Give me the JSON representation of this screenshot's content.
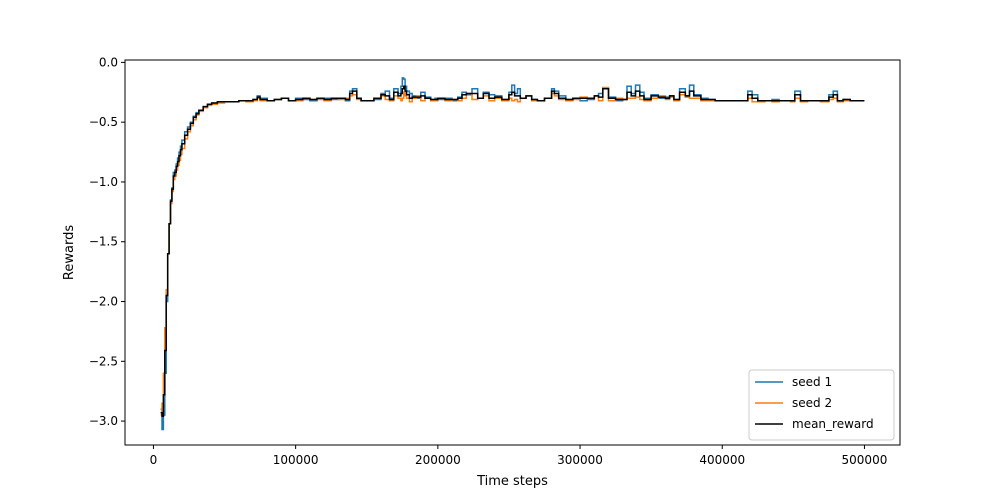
{
  "chart_data": {
    "type": "line",
    "title": "",
    "xlabel": "Time steps",
    "ylabel": "Rewards",
    "xlim": [
      -20000,
      525000
    ],
    "ylim": [
      -3.2,
      0.02
    ],
    "xticks": [
      0,
      100000,
      200000,
      300000,
      400000,
      500000
    ],
    "xtick_labels": [
      "0",
      "100000",
      "200000",
      "300000",
      "400000",
      "500000"
    ],
    "yticks": [
      -3.0,
      -2.5,
      -2.0,
      -1.5,
      -1.0,
      -0.5,
      0.0
    ],
    "ytick_labels": [
      "−3.0",
      "−2.5",
      "−2.0",
      "−1.5",
      "−1.0",
      "−0.5",
      "0.0"
    ],
    "grid": false,
    "legend_position": "bottom-right",
    "series": [
      {
        "name": "seed 1",
        "color": "#1f77b4",
        "x": [
          5000,
          6000,
          7000,
          8000,
          9000,
          10000,
          11000,
          12000,
          13000,
          14000,
          15000,
          16000,
          17000,
          18000,
          19000,
          20000,
          22000,
          24000,
          26000,
          28000,
          30000,
          32000,
          35000,
          38000,
          41000,
          45000,
          50000,
          55000,
          60000,
          65000,
          70000,
          73000,
          75000,
          80000,
          85000,
          90000,
          95000,
          100000,
          105000,
          110000,
          115000,
          120000,
          125000,
          130000,
          135000,
          138000,
          140000,
          143000,
          146000,
          150000,
          155000,
          160000,
          163000,
          166000,
          169000,
          172000,
          174000,
          175000,
          176000,
          177000,
          178000,
          180000,
          182000,
          185000,
          188000,
          191000,
          195000,
          198000,
          200000,
          205000,
          210000,
          214000,
          217000,
          220000,
          224000,
          228000,
          232000,
          236000,
          240000,
          245000,
          250000,
          252000,
          254000,
          256000,
          258000,
          262000,
          266000,
          270000,
          275000,
          280000,
          282000,
          285000,
          290000,
          295000,
          300000,
          305000,
          310000,
          313000,
          316000,
          320000,
          325000,
          330000,
          333000,
          336000,
          339000,
          342000,
          345000,
          350000,
          355000,
          360000,
          363000,
          366000,
          370000,
          374000,
          377000,
          380000,
          385000,
          390000,
          395000,
          400000,
          405000,
          410000,
          415000,
          418000,
          421000,
          425000,
          430000,
          435000,
          440000,
          445000,
          448000,
          451000,
          455000,
          460000,
          465000,
          469000,
          472000,
          475000,
          478000,
          481000,
          485000,
          490000,
          495000,
          500000
        ],
        "values": [
          -2.9,
          -3.07,
          -2.95,
          -2.6,
          -2.0,
          -1.6,
          -1.35,
          -1.15,
          -1.05,
          -0.92,
          -0.9,
          -0.85,
          -0.8,
          -0.75,
          -0.7,
          -0.65,
          -0.58,
          -0.54,
          -0.5,
          -0.45,
          -0.42,
          -0.4,
          -0.37,
          -0.35,
          -0.34,
          -0.33,
          -0.33,
          -0.33,
          -0.32,
          -0.32,
          -0.31,
          -0.28,
          -0.3,
          -0.32,
          -0.31,
          -0.3,
          -0.32,
          -0.3,
          -0.31,
          -0.32,
          -0.3,
          -0.3,
          -0.31,
          -0.3,
          -0.32,
          -0.24,
          -0.22,
          -0.3,
          -0.32,
          -0.32,
          -0.31,
          -0.26,
          -0.24,
          -0.3,
          -0.22,
          -0.26,
          -0.2,
          -0.13,
          -0.14,
          -0.2,
          -0.24,
          -0.26,
          -0.28,
          -0.3,
          -0.25,
          -0.29,
          -0.31,
          -0.3,
          -0.31,
          -0.3,
          -0.32,
          -0.29,
          -0.25,
          -0.27,
          -0.22,
          -0.3,
          -0.25,
          -0.27,
          -0.28,
          -0.31,
          -0.25,
          -0.19,
          -0.26,
          -0.22,
          -0.3,
          -0.28,
          -0.31,
          -0.32,
          -0.3,
          -0.22,
          -0.24,
          -0.28,
          -0.31,
          -0.3,
          -0.32,
          -0.31,
          -0.28,
          -0.26,
          -0.22,
          -0.29,
          -0.32,
          -0.31,
          -0.2,
          -0.26,
          -0.19,
          -0.25,
          -0.3,
          -0.27,
          -0.3,
          -0.29,
          -0.28,
          -0.31,
          -0.22,
          -0.28,
          -0.19,
          -0.27,
          -0.3,
          -0.31,
          -0.32,
          -0.32,
          -0.32,
          -0.32,
          -0.32,
          -0.24,
          -0.27,
          -0.32,
          -0.32,
          -0.31,
          -0.32,
          -0.32,
          -0.32,
          -0.24,
          -0.32,
          -0.32,
          -0.32,
          -0.32,
          -0.32,
          -0.27,
          -0.24,
          -0.32,
          -0.31,
          -0.32,
          -0.32,
          -0.32
        ],
        "line_width": 1.5
      },
      {
        "name": "seed 2",
        "color": "#ff7f0e",
        "x": [
          5000,
          6000,
          7000,
          8000,
          9000,
          10000,
          11000,
          12000,
          13000,
          14000,
          15000,
          16000,
          17000,
          18000,
          19000,
          20000,
          22000,
          24000,
          26000,
          28000,
          30000,
          32000,
          35000,
          38000,
          41000,
          45000,
          50000,
          55000,
          60000,
          65000,
          70000,
          73000,
          75000,
          80000,
          85000,
          90000,
          95000,
          100000,
          105000,
          110000,
          115000,
          120000,
          125000,
          130000,
          135000,
          138000,
          140000,
          143000,
          146000,
          150000,
          155000,
          160000,
          163000,
          166000,
          169000,
          172000,
          174000,
          175000,
          176000,
          177000,
          178000,
          180000,
          182000,
          185000,
          188000,
          191000,
          195000,
          198000,
          200000,
          205000,
          210000,
          214000,
          217000,
          220000,
          224000,
          228000,
          232000,
          236000,
          240000,
          245000,
          250000,
          252000,
          254000,
          256000,
          258000,
          262000,
          266000,
          270000,
          275000,
          280000,
          282000,
          285000,
          290000,
          295000,
          300000,
          305000,
          310000,
          313000,
          316000,
          320000,
          325000,
          330000,
          333000,
          336000,
          339000,
          342000,
          345000,
          350000,
          355000,
          360000,
          363000,
          366000,
          370000,
          374000,
          377000,
          380000,
          385000,
          390000,
          395000,
          400000,
          405000,
          410000,
          415000,
          418000,
          421000,
          425000,
          430000,
          435000,
          440000,
          445000,
          448000,
          451000,
          455000,
          460000,
          465000,
          469000,
          472000,
          475000,
          478000,
          481000,
          485000,
          490000,
          495000,
          500000
        ],
        "values": [
          -2.95,
          -2.85,
          -2.6,
          -2.22,
          -1.9,
          -1.6,
          -1.35,
          -1.18,
          -1.08,
          -0.98,
          -0.95,
          -0.9,
          -0.86,
          -0.82,
          -0.77,
          -0.72,
          -0.64,
          -0.58,
          -0.53,
          -0.48,
          -0.44,
          -0.41,
          -0.38,
          -0.36,
          -0.35,
          -0.34,
          -0.33,
          -0.33,
          -0.32,
          -0.33,
          -0.32,
          -0.3,
          -0.32,
          -0.32,
          -0.31,
          -0.3,
          -0.32,
          -0.32,
          -0.3,
          -0.31,
          -0.31,
          -0.32,
          -0.3,
          -0.31,
          -0.3,
          -0.28,
          -0.27,
          -0.31,
          -0.32,
          -0.32,
          -0.3,
          -0.28,
          -0.31,
          -0.32,
          -0.28,
          -0.3,
          -0.32,
          -0.3,
          -0.25,
          -0.28,
          -0.3,
          -0.33,
          -0.3,
          -0.28,
          -0.32,
          -0.3,
          -0.32,
          -0.32,
          -0.3,
          -0.32,
          -0.31,
          -0.32,
          -0.3,
          -0.26,
          -0.31,
          -0.3,
          -0.28,
          -0.32,
          -0.3,
          -0.32,
          -0.3,
          -0.32,
          -0.31,
          -0.33,
          -0.3,
          -0.28,
          -0.32,
          -0.32,
          -0.3,
          -0.26,
          -0.28,
          -0.31,
          -0.32,
          -0.31,
          -0.29,
          -0.3,
          -0.28,
          -0.32,
          -0.21,
          -0.32,
          -0.3,
          -0.31,
          -0.3,
          -0.3,
          -0.29,
          -0.31,
          -0.32,
          -0.3,
          -0.28,
          -0.31,
          -0.29,
          -0.32,
          -0.27,
          -0.29,
          -0.3,
          -0.3,
          -0.32,
          -0.32,
          -0.32,
          -0.32,
          -0.32,
          -0.32,
          -0.32,
          -0.3,
          -0.33,
          -0.33,
          -0.32,
          -0.33,
          -0.32,
          -0.32,
          -0.33,
          -0.3,
          -0.33,
          -0.32,
          -0.32,
          -0.33,
          -0.33,
          -0.31,
          -0.3,
          -0.33,
          -0.32,
          -0.32,
          -0.32,
          -0.32
        ],
        "line_width": 1.5
      },
      {
        "name": "mean_reward",
        "color": "#000000",
        "x": [
          5000,
          6000,
          7000,
          8000,
          9000,
          10000,
          11000,
          12000,
          13000,
          14000,
          15000,
          16000,
          17000,
          18000,
          19000,
          20000,
          22000,
          24000,
          26000,
          28000,
          30000,
          32000,
          35000,
          38000,
          41000,
          45000,
          50000,
          55000,
          60000,
          65000,
          70000,
          73000,
          75000,
          80000,
          85000,
          90000,
          95000,
          100000,
          105000,
          110000,
          115000,
          120000,
          125000,
          130000,
          135000,
          138000,
          140000,
          143000,
          146000,
          150000,
          155000,
          160000,
          163000,
          166000,
          169000,
          172000,
          174000,
          175000,
          176000,
          177000,
          178000,
          180000,
          182000,
          185000,
          188000,
          191000,
          195000,
          198000,
          200000,
          205000,
          210000,
          214000,
          217000,
          220000,
          224000,
          228000,
          232000,
          236000,
          240000,
          245000,
          250000,
          252000,
          254000,
          256000,
          258000,
          262000,
          266000,
          270000,
          275000,
          280000,
          282000,
          285000,
          290000,
          295000,
          300000,
          305000,
          310000,
          313000,
          316000,
          320000,
          325000,
          330000,
          333000,
          336000,
          339000,
          342000,
          345000,
          350000,
          355000,
          360000,
          363000,
          366000,
          370000,
          374000,
          377000,
          380000,
          385000,
          390000,
          395000,
          400000,
          405000,
          410000,
          415000,
          418000,
          421000,
          425000,
          430000,
          435000,
          440000,
          445000,
          448000,
          451000,
          455000,
          460000,
          465000,
          469000,
          472000,
          475000,
          478000,
          481000,
          485000,
          490000,
          495000,
          500000
        ],
        "values": [
          -2.93,
          -2.96,
          -2.78,
          -2.41,
          -1.95,
          -1.6,
          -1.35,
          -1.16,
          -1.06,
          -0.95,
          -0.92,
          -0.87,
          -0.83,
          -0.78,
          -0.73,
          -0.68,
          -0.61,
          -0.56,
          -0.51,
          -0.46,
          -0.43,
          -0.4,
          -0.37,
          -0.35,
          -0.34,
          -0.33,
          -0.33,
          -0.33,
          -0.32,
          -0.32,
          -0.31,
          -0.29,
          -0.31,
          -0.32,
          -0.31,
          -0.3,
          -0.32,
          -0.31,
          -0.3,
          -0.31,
          -0.3,
          -0.31,
          -0.3,
          -0.3,
          -0.31,
          -0.26,
          -0.24,
          -0.3,
          -0.32,
          -0.32,
          -0.3,
          -0.27,
          -0.28,
          -0.31,
          -0.25,
          -0.28,
          -0.26,
          -0.22,
          -0.2,
          -0.24,
          -0.27,
          -0.3,
          -0.29,
          -0.29,
          -0.28,
          -0.3,
          -0.31,
          -0.31,
          -0.3,
          -0.31,
          -0.31,
          -0.3,
          -0.27,
          -0.26,
          -0.26,
          -0.3,
          -0.26,
          -0.3,
          -0.29,
          -0.31,
          -0.27,
          -0.25,
          -0.28,
          -0.28,
          -0.3,
          -0.28,
          -0.31,
          -0.32,
          -0.3,
          -0.24,
          -0.26,
          -0.3,
          -0.31,
          -0.3,
          -0.3,
          -0.3,
          -0.28,
          -0.29,
          -0.22,
          -0.3,
          -0.31,
          -0.31,
          -0.25,
          -0.28,
          -0.24,
          -0.28,
          -0.31,
          -0.28,
          -0.29,
          -0.3,
          -0.28,
          -0.31,
          -0.25,
          -0.28,
          -0.24,
          -0.28,
          -0.31,
          -0.31,
          -0.32,
          -0.32,
          -0.32,
          -0.32,
          -0.32,
          -0.27,
          -0.3,
          -0.32,
          -0.32,
          -0.32,
          -0.32,
          -0.32,
          -0.32,
          -0.27,
          -0.32,
          -0.32,
          -0.32,
          -0.32,
          -0.32,
          -0.29,
          -0.27,
          -0.32,
          -0.31,
          -0.32,
          -0.32,
          -0.32
        ],
        "line_width": 1.5
      }
    ]
  }
}
